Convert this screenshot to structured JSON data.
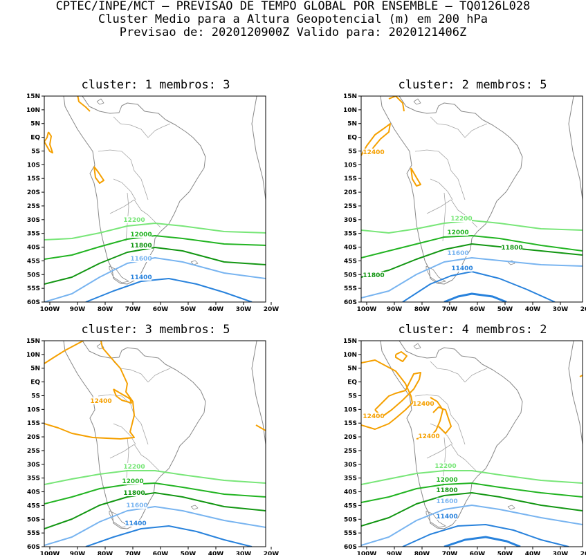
{
  "header": {
    "line1": "CPTEC/INPE/MCT – PREVISAO DE TEMPO GLOBAL POR ENSEMBLE – TQ0126L028",
    "line2": "Cluster Medio para a Altura Geopotencial (m) em 200 hPa",
    "line3": "Previsao de: 2020120900Z    Valido para: 2020121406Z"
  },
  "axes": {
    "lat_labels": [
      "15N",
      "10N",
      "5N",
      "EQ",
      "5S",
      "10S",
      "15S",
      "20S",
      "25S",
      "30S",
      "35S",
      "40S",
      "45S",
      "50S",
      "55S",
      "60S"
    ],
    "lon_labels": [
      "100W",
      "90W",
      "80W",
      "70W",
      "60W",
      "50W",
      "40W",
      "30W",
      "20W"
    ]
  },
  "contour_colors": {
    "12400": "#f5a000",
    "12200": "#78e678",
    "12000": "#22b422",
    "11800": "#129612",
    "11600": "#78b4f0",
    "11400": "#2882dc"
  },
  "panels": [
    {
      "title": "cluster: 1   membros: 3",
      "labels": [
        "12200",
        "12000",
        "11800",
        "11600",
        "11400"
      ]
    },
    {
      "title": "cluster: 2   membros: 5",
      "labels": [
        "12400",
        "12200",
        "12000",
        "11800",
        "11800",
        "11600",
        "11400"
      ]
    },
    {
      "title": "cluster: 3   membros: 5",
      "labels": [
        "12400",
        "12200",
        "12000",
        "11800",
        "11600",
        "11400"
      ]
    },
    {
      "title": "cluster: 4   membros: 2",
      "labels": [
        "12400",
        "12400",
        "12400",
        "12200",
        "12000",
        "11800",
        "11600",
        "11400"
      ]
    }
  ]
}
